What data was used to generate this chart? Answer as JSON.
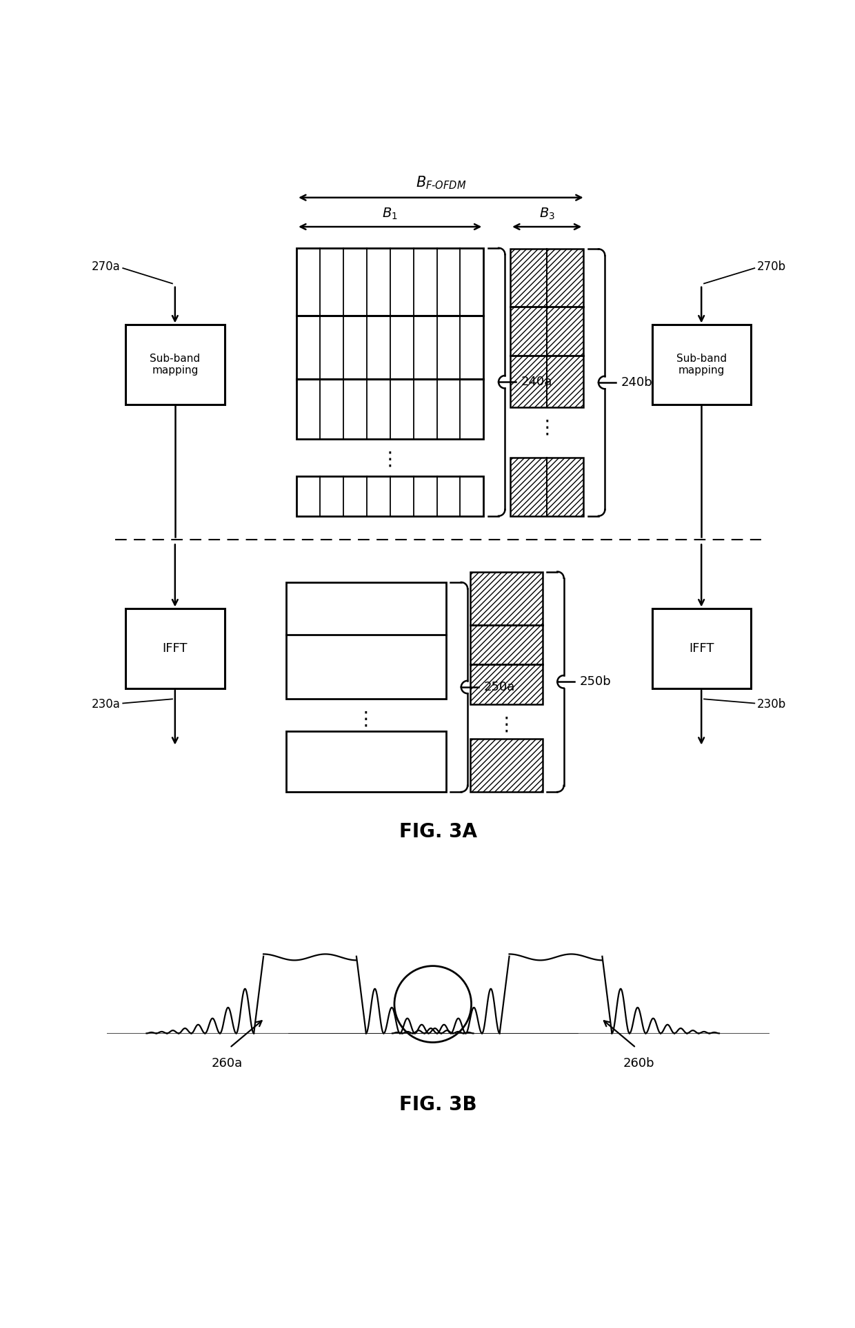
{
  "fig_width": 12.4,
  "fig_height": 19.27,
  "bg_color": "#ffffff",
  "title_3a": "FIG. 3A",
  "title_3b": "FIG. 3B",
  "label_270a": "270a",
  "label_270b": "270b",
  "label_230a": "230a",
  "label_230b": "230b",
  "label_240a": "240a",
  "label_240b": "240b",
  "label_250a": "250a",
  "label_250b": "250b",
  "label_260a": "260a",
  "label_260b": "260b",
  "label_subband": "Sub-band\nmapping",
  "label_ifft": "IFFT",
  "label_B1": "$B_1$",
  "label_B3": "$B_3$",
  "label_BFOFDM": "$B_{F\\text{-}OFDM}$",
  "xlim": [
    0,
    12.4
  ],
  "ylim": [
    0,
    19.27
  ]
}
